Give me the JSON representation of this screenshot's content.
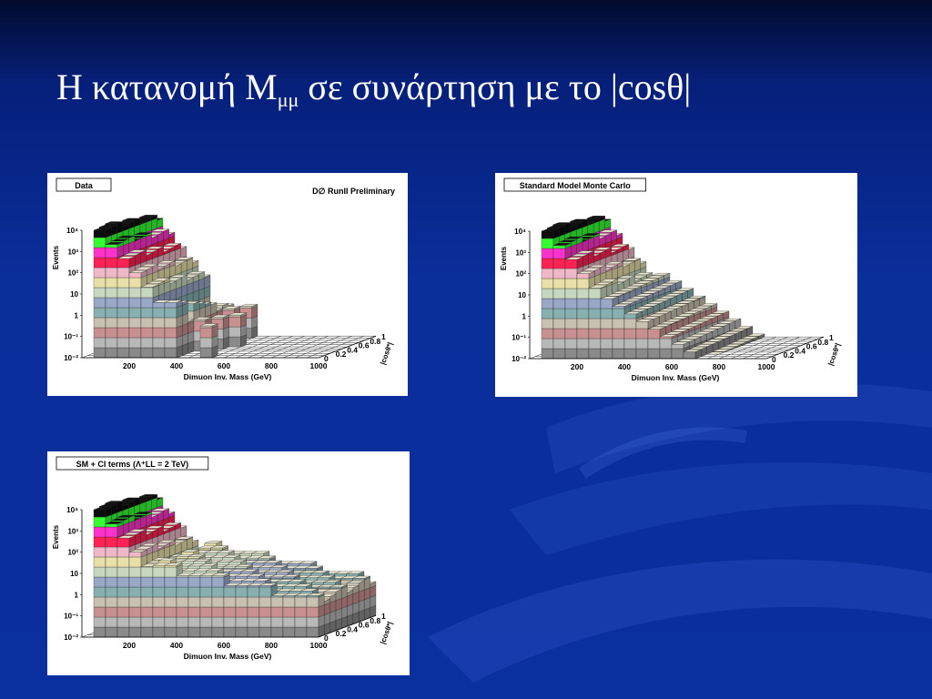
{
  "slide": {
    "title_main": "Η κατανομή M",
    "title_sub": "μμ",
    "title_rest": " σε συνάρτηση με το |cosθ|"
  },
  "colors": {
    "background": "#0a2f9e",
    "title": "#ffffff",
    "lego_bands": [
      "#0b0b0b",
      "#33ff33",
      "#ff33cc",
      "#ff2255",
      "#eeb8c8",
      "#e8e0a8",
      "#c8d8c0",
      "#9aa8c8",
      "#88b0b0",
      "#c8c0b0",
      "#c89090",
      "#b8b8b8",
      "#8a8a8a"
    ]
  },
  "chart_data": [
    {
      "type": "lego3d",
      "label": "Data",
      "corner_text": "D∅ RunII Preliminary",
      "xlabel": "Dimuon Inv. Mass (GeV)",
      "ylabel": "Events",
      "zlabel": "|cosθ*|",
      "x_ticks": [
        "200",
        "400",
        "600",
        "800",
        "1000"
      ],
      "depth_ticks": [
        "0",
        "0.2",
        "0.4",
        "0.6",
        "0.8",
        "1"
      ],
      "y_ticks": [
        "10⁻²",
        "10⁻¹",
        "1",
        "10",
        "10²",
        "10³",
        "10⁴"
      ],
      "x_range": [
        0,
        1000
      ],
      "depth_range": [
        0,
        1
      ],
      "y_log_range": [
        -2,
        4
      ]
    },
    {
      "type": "lego3d",
      "label": "Standard Model Monte Carlo",
      "xlabel": "Dimuon Inv. Mass (GeV)",
      "ylabel": "Events",
      "zlabel": "|cosθ*|",
      "x_ticks": [
        "200",
        "400",
        "600",
        "800",
        "1000"
      ],
      "depth_ticks": [
        "0",
        "0.2",
        "0.4",
        "0.6",
        "0.8",
        "1"
      ],
      "y_ticks": [
        "10⁻²",
        "10⁻¹",
        "1",
        "10",
        "10²",
        "10³",
        "10⁴"
      ],
      "x_range": [
        0,
        1000
      ],
      "depth_range": [
        0,
        1
      ],
      "y_log_range": [
        -2,
        4
      ]
    },
    {
      "type": "lego3d",
      "label": "SM + CI terms (Λ⁺LL = 2 TeV)",
      "xlabel": "Dimuon Inv. Mass (GeV)",
      "ylabel": "Events",
      "zlabel": "|cosθ*|",
      "x_ticks": [
        "200",
        "400",
        "600",
        "800",
        "1000"
      ],
      "depth_ticks": [
        "0",
        "0.2",
        "0.4",
        "0.6",
        "0.8",
        "1"
      ],
      "y_ticks": [
        "10⁻²",
        "10⁻¹",
        "1",
        "10",
        "10²",
        "10³",
        "10⁴"
      ],
      "x_range": [
        0,
        1000
      ],
      "depth_range": [
        0,
        1
      ],
      "y_log_range": [
        -2,
        4
      ]
    }
  ]
}
